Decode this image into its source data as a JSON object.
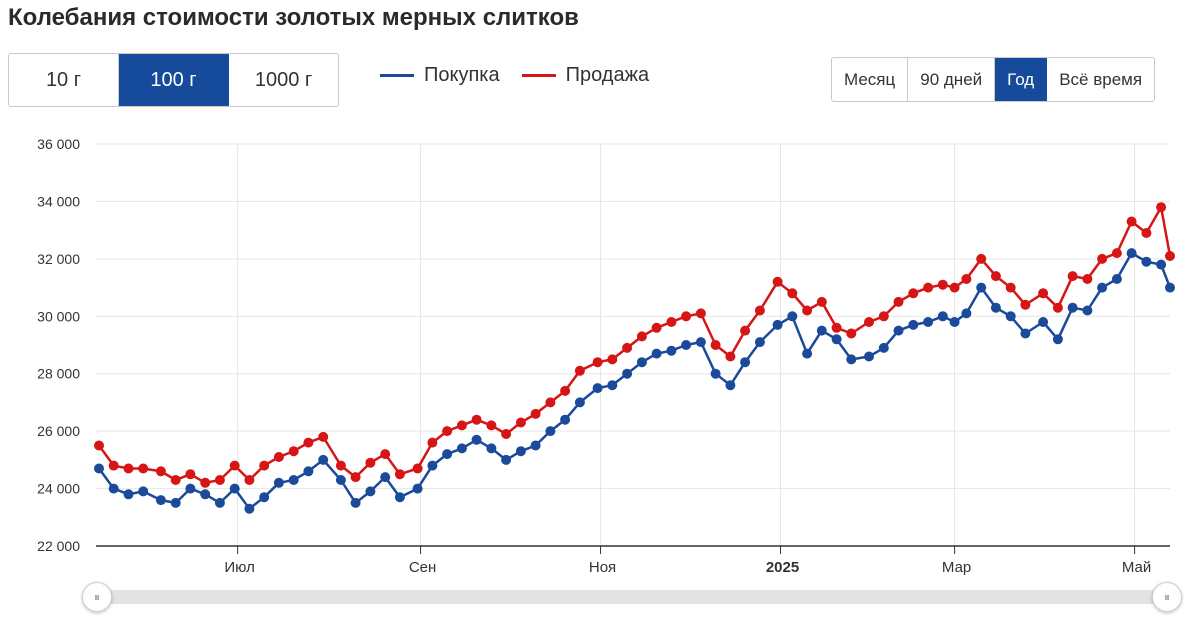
{
  "header": {
    "title": "Колебания стоимости золотых мерных слитков"
  },
  "weights": {
    "options": [
      {
        "label": "10 г",
        "active": false
      },
      {
        "label": "100 г",
        "active": true
      },
      {
        "label": "1000 г",
        "active": false
      }
    ]
  },
  "periods": {
    "options": [
      {
        "label": "Месяц",
        "active": false
      },
      {
        "label": "90 дней",
        "active": false
      },
      {
        "label": "Год",
        "active": true
      },
      {
        "label": "Всё время",
        "active": false
      }
    ]
  },
  "navigator": {
    "handle_glyph": "⏸"
  },
  "colors": {
    "buy": "#1a4a99",
    "sell": "#d61515",
    "active": "#164a9a",
    "grid": "#e6e6e6",
    "axis": "#333333"
  },
  "chart_data": {
    "type": "line",
    "title": "",
    "xlabel": "",
    "ylabel": "",
    "ylim": [
      22000,
      36000
    ],
    "yticks": [
      22000,
      24000,
      26000,
      28000,
      30000,
      32000,
      34000,
      36000
    ],
    "ytick_labels": [
      "22 000",
      "24 000",
      "26 000",
      "28 000",
      "30 000",
      "32 000",
      "34 000",
      "36 000"
    ],
    "xlim": [
      "2024-05-14",
      "2025-05-13"
    ],
    "xticks": [
      {
        "date": "2024-07-01",
        "label": "Июл",
        "bold": false
      },
      {
        "date": "2024-09-01",
        "label": "Сен",
        "bold": false
      },
      {
        "date": "2024-11-01",
        "label": "Ноя",
        "bold": false
      },
      {
        "date": "2025-01-01",
        "label": "2025",
        "bold": true
      },
      {
        "date": "2025-03-01",
        "label": "Мар",
        "bold": false
      },
      {
        "date": "2025-05-01",
        "label": "Май",
        "bold": false
      }
    ],
    "legend": "top",
    "grid": true,
    "x": [
      "2024-05-15",
      "2024-05-20",
      "2024-05-25",
      "2024-05-30",
      "2024-06-05",
      "2024-06-10",
      "2024-06-15",
      "2024-06-20",
      "2024-06-25",
      "2024-06-30",
      "2024-07-05",
      "2024-07-10",
      "2024-07-15",
      "2024-07-20",
      "2024-07-25",
      "2024-07-30",
      "2024-08-05",
      "2024-08-10",
      "2024-08-15",
      "2024-08-20",
      "2024-08-25",
      "2024-08-31",
      "2024-09-05",
      "2024-09-10",
      "2024-09-15",
      "2024-09-20",
      "2024-09-25",
      "2024-09-30",
      "2024-10-05",
      "2024-10-10",
      "2024-10-15",
      "2024-10-20",
      "2024-10-25",
      "2024-10-31",
      "2024-11-05",
      "2024-11-10",
      "2024-11-15",
      "2024-11-20",
      "2024-11-25",
      "2024-11-30",
      "2024-12-05",
      "2024-12-10",
      "2024-12-15",
      "2024-12-20",
      "2024-12-25",
      "2024-12-31",
      "2025-01-05",
      "2025-01-10",
      "2025-01-15",
      "2025-01-20",
      "2025-01-25",
      "2025-01-31",
      "2025-02-05",
      "2025-02-10",
      "2025-02-15",
      "2025-02-20",
      "2025-02-25",
      "2025-03-01",
      "2025-03-05",
      "2025-03-10",
      "2025-03-15",
      "2025-03-20",
      "2025-03-25",
      "2025-03-31",
      "2025-04-05",
      "2025-04-10",
      "2025-04-15",
      "2025-04-20",
      "2025-04-25",
      "2025-04-30",
      "2025-05-05",
      "2025-05-10",
      "2025-05-13"
    ],
    "series": [
      {
        "name": "Покупка",
        "color": "#1a4a99",
        "values": [
          24700,
          24000,
          23800,
          23900,
          23600,
          23500,
          24000,
          23800,
          23500,
          24000,
          23300,
          23700,
          24200,
          24300,
          24600,
          25000,
          24300,
          23500,
          23900,
          24400,
          23700,
          24000,
          24800,
          25200,
          25400,
          25700,
          25400,
          25000,
          25300,
          25500,
          26000,
          26400,
          27000,
          27500,
          27600,
          28000,
          28400,
          28700,
          28800,
          29000,
          29100,
          28000,
          27600,
          28400,
          29100,
          29700,
          30000,
          28700,
          29500,
          29200,
          28500,
          28600,
          28900,
          29500,
          29700,
          29800,
          30000,
          29800,
          30100,
          31000,
          30300,
          30000,
          29400,
          29800,
          29200,
          30300,
          30200,
          31000,
          31300,
          32200,
          31900,
          31800,
          31000
        ]
      },
      {
        "name": "Продажа",
        "color": "#d61515",
        "values": [
          25500,
          24800,
          24700,
          24700,
          24600,
          24300,
          24500,
          24200,
          24300,
          24800,
          24300,
          24800,
          25100,
          25300,
          25600,
          25800,
          24800,
          24400,
          24900,
          25200,
          24500,
          24700,
          25600,
          26000,
          26200,
          26400,
          26200,
          25900,
          26300,
          26600,
          27000,
          27400,
          28100,
          28400,
          28500,
          28900,
          29300,
          29600,
          29800,
          30000,
          30100,
          29000,
          28600,
          29500,
          30200,
          31200,
          30800,
          30200,
          30500,
          29600,
          29400,
          29800,
          30000,
          30500,
          30800,
          31000,
          31100,
          31000,
          31300,
          32000,
          31400,
          31000,
          30400,
          30800,
          30300,
          31400,
          31300,
          32000,
          32200,
          33300,
          32900,
          33800,
          32100
        ]
      }
    ]
  }
}
